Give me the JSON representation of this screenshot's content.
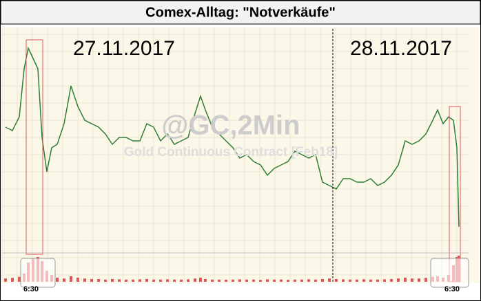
{
  "chart_data": {
    "type": "line",
    "title": "Comex-Alltag: \"Notverkäufe\"",
    "annotations": [
      "27.11.2017",
      "28.11.2017"
    ],
    "watermark": "@GC,2Min",
    "watermark_subtitle": "Gold Continuous Contract [Feb18]",
    "time_labels": [
      "6:30",
      "6:30"
    ],
    "xlim": [
      0,
      675
    ],
    "ylim": [
      0,
      100
    ],
    "volume_lim": [
      0,
      100
    ],
    "x": [
      5,
      15,
      25,
      32,
      38,
      45,
      52,
      58,
      65,
      72,
      80,
      90,
      100,
      110,
      120,
      130,
      140,
      150,
      160,
      170,
      180,
      190,
      200,
      210,
      220,
      230,
      240,
      250,
      260,
      270,
      280,
      288,
      295,
      305,
      315,
      325,
      335,
      345,
      355,
      365,
      375,
      385,
      395,
      405,
      415,
      425,
      435,
      445,
      455,
      465,
      475,
      485,
      495,
      505,
      515,
      525,
      535,
      545,
      555,
      565,
      575,
      585,
      595,
      605,
      615,
      625,
      632,
      640,
      648,
      655,
      660,
      663
    ],
    "series": [
      {
        "color": "#2e7d32",
        "values": [
          46,
          44,
          52,
          80,
          92,
          86,
          80,
          40,
          20,
          34,
          36,
          48,
          70,
          58,
          50,
          48,
          46,
          42,
          36,
          40,
          40,
          38,
          38,
          48,
          46,
          38,
          42,
          36,
          38,
          40,
          54,
          64,
          56,
          46,
          42,
          38,
          34,
          28,
          30,
          26,
          24,
          18,
          22,
          24,
          26,
          32,
          30,
          28,
          30,
          14,
          12,
          10,
          16,
          16,
          14,
          14,
          16,
          12,
          14,
          18,
          24,
          38,
          36,
          38,
          42,
          50,
          56,
          48,
          52,
          50,
          34,
          -12
        ]
      },
      {
        "name": "Volume",
        "color": "#e05555",
        "values": [
          12,
          14,
          18,
          30,
          70,
          85,
          90,
          75,
          40,
          25,
          15,
          12,
          20,
          15,
          12,
          10,
          10,
          8,
          10,
          9,
          8,
          8,
          9,
          10,
          8,
          8,
          9,
          8,
          8,
          9,
          12,
          15,
          10,
          8,
          8,
          7,
          8,
          9,
          8,
          8,
          7,
          9,
          8,
          8,
          7,
          8,
          8,
          9,
          8,
          10,
          12,
          10,
          9,
          8,
          8,
          9,
          8,
          8,
          9,
          10,
          12,
          15,
          12,
          12,
          14,
          18,
          20,
          15,
          25,
          60,
          90,
          95
        ]
      }
    ]
  }
}
